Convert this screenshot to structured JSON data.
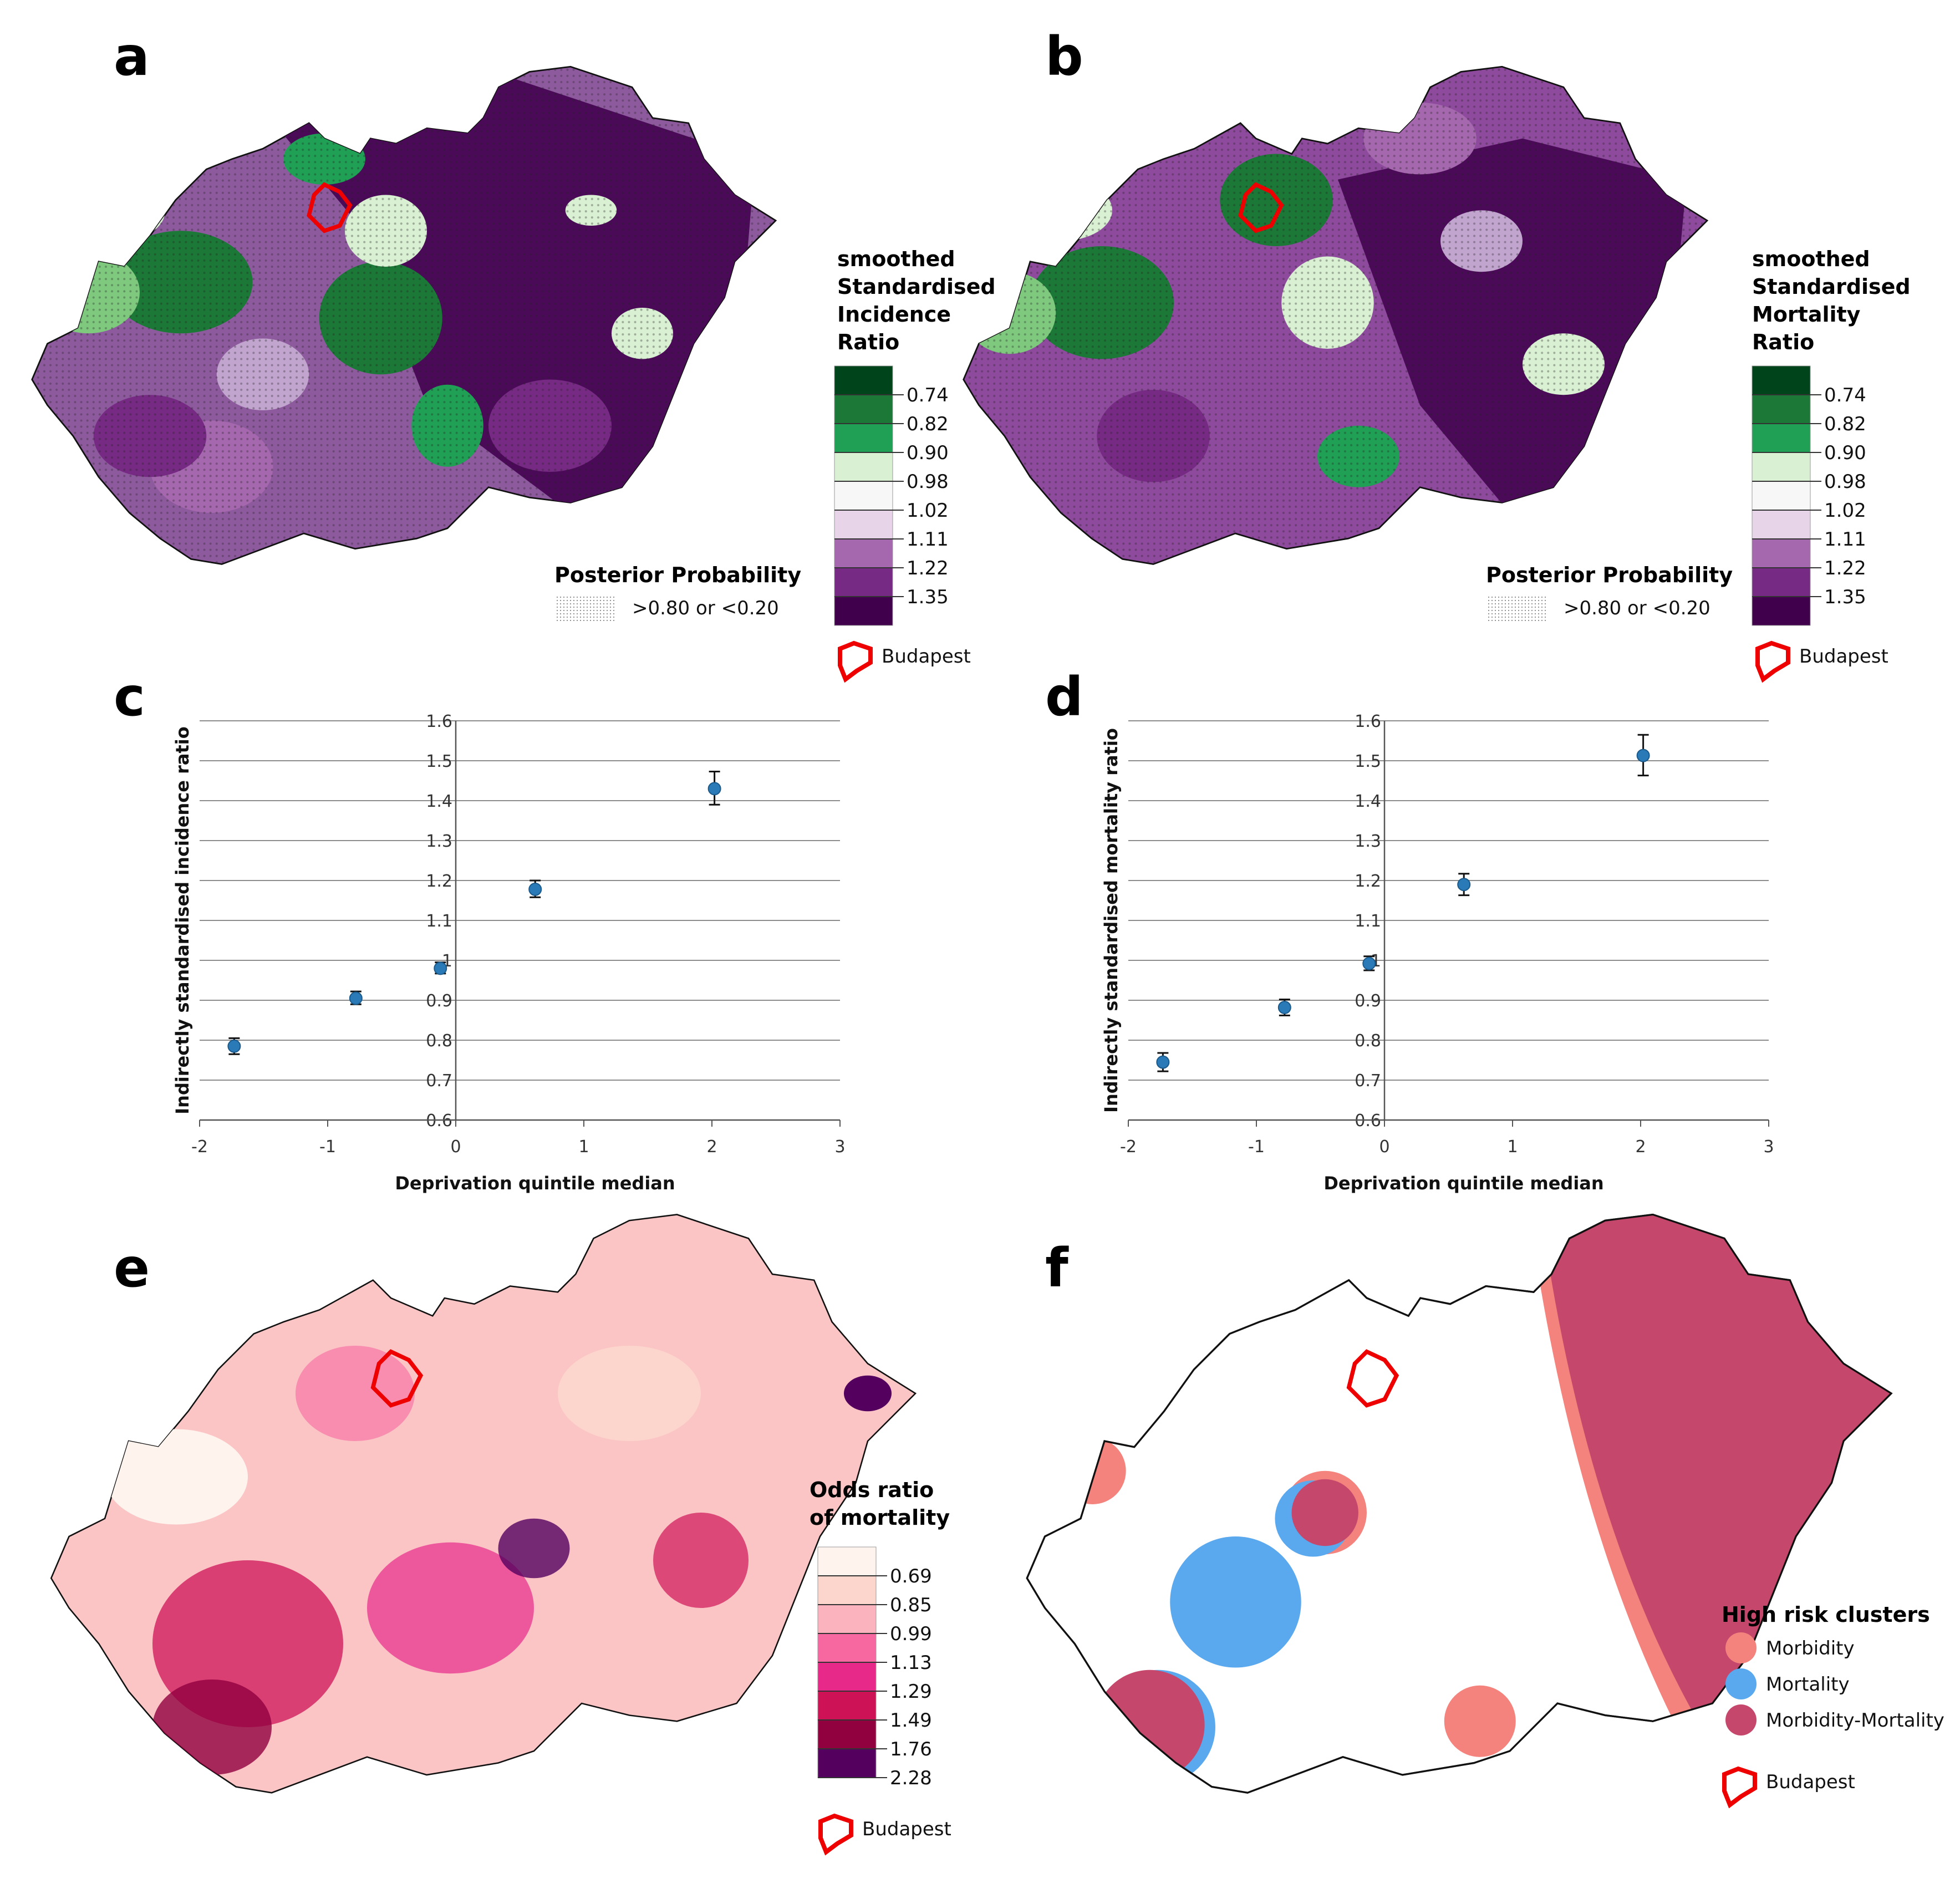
{
  "panels": {
    "a": {
      "label": "a",
      "legend_title": [
        "smoothed",
        "Standardised",
        "Incidence",
        "Ratio"
      ],
      "legend_colors": [
        "#00441b",
        "#1b7837",
        "#1fa055",
        "#d9f0d3",
        "#f7f7f7",
        "#e7d4e8",
        "#a567ad",
        "#762a83",
        "#40004b"
      ],
      "legend_breaks": [
        "0.74",
        "0.82",
        "0.90",
        "0.98",
        "1.02",
        "1.11",
        "1.22",
        "1.35"
      ],
      "posterior_title": "Posterior Probability",
      "posterior_text": ">0.80 or <0.20",
      "budapest_label": "Budapest"
    },
    "b": {
      "label": "b",
      "legend_title": [
        "smoothed",
        "Standardised",
        "Mortality",
        "Ratio"
      ],
      "legend_colors": [
        "#00441b",
        "#1b7837",
        "#1fa055",
        "#d9f0d3",
        "#f7f7f7",
        "#e7d4e8",
        "#a567ad",
        "#762a83",
        "#40004b"
      ],
      "legend_breaks": [
        "0.74",
        "0.82",
        "0.90",
        "0.98",
        "1.02",
        "1.11",
        "1.22",
        "1.35"
      ],
      "posterior_title": "Posterior Probability",
      "posterior_text": ">0.80 or <0.20",
      "budapest_label": "Budapest"
    },
    "c": {
      "label": "c"
    },
    "d": {
      "label": "d"
    },
    "e": {
      "label": "e",
      "legend_title": [
        "Odds ratio",
        "of mortality"
      ],
      "legend_colors": [
        "#fff3ee",
        "#fcd5cd",
        "#fbb3bd",
        "#f768a1",
        "#e7298a",
        "#ce1256",
        "#91003f",
        "#54005f"
      ],
      "legend_breaks": [
        "0.69",
        "0.85",
        "0.99",
        "1.13",
        "1.29",
        "1.49",
        "1.76",
        "2.28"
      ],
      "budapest_label": "Budapest"
    },
    "f": {
      "label": "f",
      "legend_title": "High risk clusters",
      "legend_items": [
        {
          "label": "Morbidity",
          "color": "#f4837d"
        },
        {
          "label": "Mortality",
          "color": "#5aa8ee"
        },
        {
          "label": "Morbidity-Mortality",
          "color": "#c5486c"
        }
      ],
      "budapest_label": "Budapest"
    }
  },
  "chart_data": [
    {
      "id": "c",
      "type": "scatter",
      "title": "",
      "xlabel": "Deprivation quintile median",
      "ylabel": "Indirectly standardised incidence ratio",
      "xlim": [
        -2,
        3
      ],
      "ylim": [
        0.6,
        1.6
      ],
      "xticks": [
        "-2",
        "-1",
        "0",
        "1",
        "2",
        "3"
      ],
      "yticks": [
        "0.6",
        "0.7",
        "0.8",
        "0.9",
        "1",
        "1.1",
        "1.2",
        "1.3",
        "1.4",
        "1.5",
        "1.6"
      ],
      "grid": true,
      "x": [
        -1.73,
        -0.78,
        -0.12,
        0.62,
        2.02
      ],
      "y": [
        0.785,
        0.905,
        0.98,
        1.178,
        1.43
      ],
      "y_low": [
        0.765,
        0.89,
        0.967,
        1.158,
        1.39
      ],
      "y_high": [
        0.805,
        0.922,
        0.995,
        1.2,
        1.473
      ]
    },
    {
      "id": "d",
      "type": "scatter",
      "title": "",
      "xlabel": "Deprivation quintile median",
      "ylabel": "Indirectly standardised mortality ratio",
      "xlim": [
        -2,
        3
      ],
      "ylim": [
        0.6,
        1.6
      ],
      "xticks": [
        "-2",
        "-1",
        "0",
        "1",
        "2",
        "3"
      ],
      "yticks": [
        "0.6",
        "0.7",
        "0.8",
        "0.9",
        "1",
        "1.1",
        "1.2",
        "1.3",
        "1.4",
        "1.5",
        "1.6"
      ],
      "grid": true,
      "x": [
        -1.73,
        -0.78,
        -0.12,
        0.62,
        2.02
      ],
      "y": [
        0.745,
        0.882,
        0.992,
        1.19,
        1.513
      ],
      "y_low": [
        0.722,
        0.862,
        0.975,
        1.163,
        1.463
      ],
      "y_high": [
        0.768,
        0.902,
        1.01,
        1.217,
        1.565
      ]
    }
  ]
}
